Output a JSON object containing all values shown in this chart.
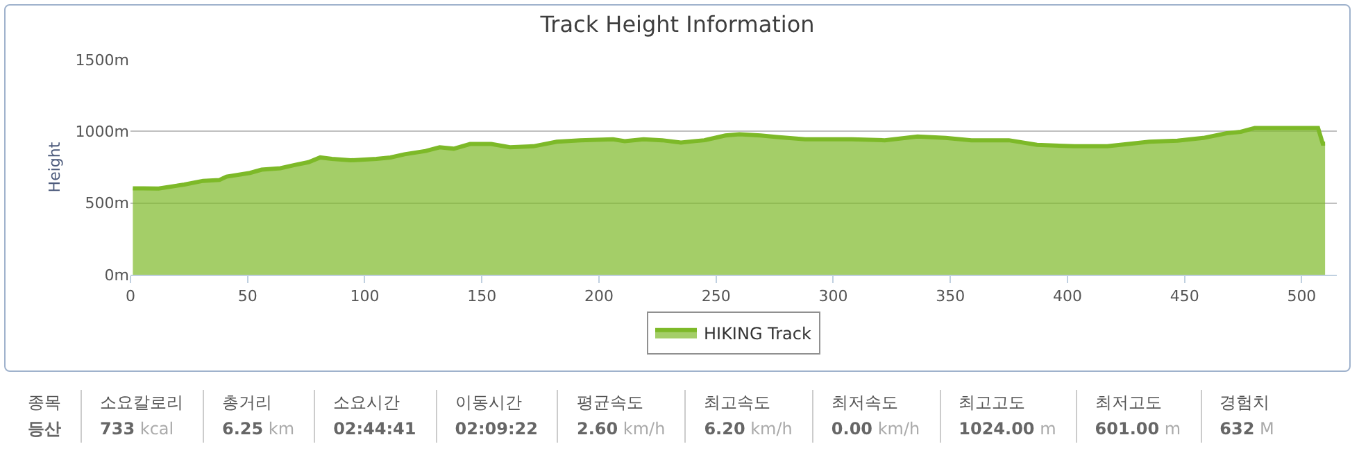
{
  "chart_data": {
    "type": "area",
    "title": "Track Height Information",
    "ylabel": "Height",
    "x": [
      1,
      5.5,
      12,
      23,
      31,
      38,
      41,
      51,
      56,
      64,
      70,
      76,
      81,
      86,
      94,
      105,
      111,
      117,
      126,
      132,
      138,
      145,
      154,
      162,
      172,
      182,
      192,
      206,
      211,
      219,
      227,
      235,
      241,
      245,
      254,
      260,
      269,
      276,
      288,
      308,
      322,
      336,
      348,
      359,
      375,
      387,
      403,
      417,
      435,
      447,
      458,
      468,
      474,
      480,
      494,
      507,
      509,
      510
    ],
    "series": [
      {
        "name": "HIKING Track",
        "color": "#7db928",
        "values": [
          603,
          603,
          601,
          629,
          655,
          661,
          684,
          710,
          733,
          743,
          765,
          785,
          818,
          808,
          798,
          808,
          818,
          840,
          863,
          889,
          879,
          912,
          912,
          889,
          896,
          928,
          938,
          945,
          932,
          945,
          938,
          922,
          932,
          938,
          971,
          980,
          971,
          961,
          945,
          945,
          938,
          964,
          954,
          938,
          938,
          906,
          896,
          896,
          928,
          935,
          954,
          987,
          997,
          1024,
          1024,
          1024,
          915,
          915
        ]
      }
    ],
    "xlim": [
      0,
      515
    ],
    "xticks": [
      0,
      50,
      100,
      150,
      200,
      250,
      300,
      350,
      400,
      450,
      500
    ],
    "ylim": [
      0,
      1500
    ],
    "yticks": [
      {
        "value": 0,
        "label": "0m"
      },
      {
        "value": 500,
        "label": "500m"
      },
      {
        "value": 1000,
        "label": "1000m"
      },
      {
        "value": 1500,
        "label": "1500m"
      }
    ],
    "grid": "y",
    "legend": "bottom",
    "annotations": [
      "종목\n등산",
      "소요칼로리\n733 kcal",
      "총거리\n6.25 km",
      "소요시간\n02:44:41",
      "이동시간\n02:09:22",
      "평균속도\n2.60 km/h",
      "최고속도\n6.20 km/h",
      "최저속도\n0.00 km/h",
      "최고고도\n1024.00 m",
      "최저고도\n601.00 m",
      "경험치\n632 M"
    ]
  }
}
